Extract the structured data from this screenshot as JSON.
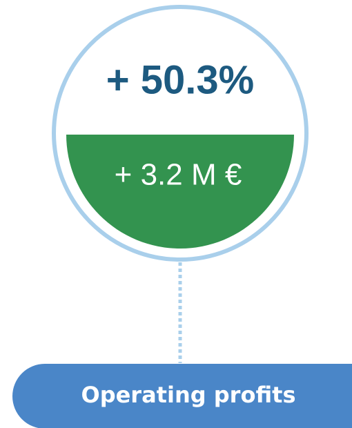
{
  "change_percent": "+ 50.3%",
  "change_amount": "+ 3.2 M €",
  "label": "Operating profits"
}
